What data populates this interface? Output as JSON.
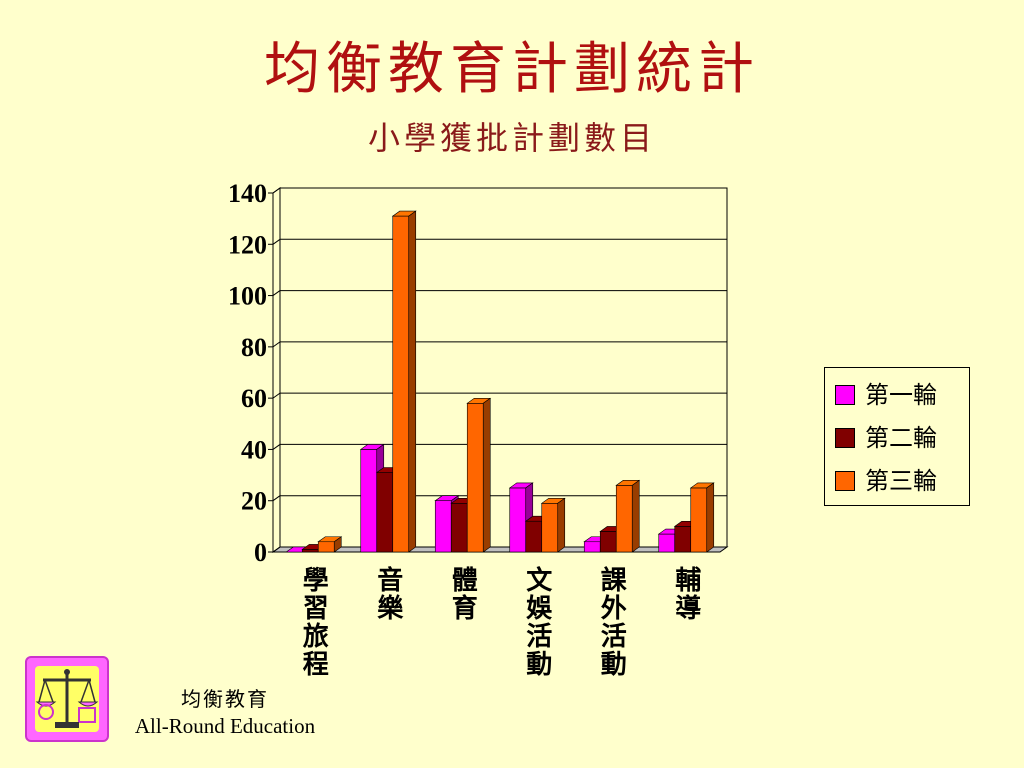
{
  "slide": {
    "title": "均衡教育計劃統計",
    "subtitle": "小學獲批計劃數目"
  },
  "footer": {
    "chinese": "均衡教育",
    "english": "All-Round Education"
  },
  "logo": {
    "icon": "balance-scale-icon",
    "colors": {
      "outer": "#ff66ff",
      "inner": "#ffff66"
    }
  },
  "chart_data": {
    "type": "bar",
    "title": "",
    "categories": [
      "學習旅程",
      "音樂",
      "體育",
      "文娛活動",
      "課外活動",
      "輔導"
    ],
    "series": [
      {
        "name": "第一輪",
        "color": "#ff00ff",
        "values": [
          0,
          40,
          20,
          25,
          4,
          7
        ]
      },
      {
        "name": "第二輪",
        "color": "#800000",
        "values": [
          1,
          31,
          19,
          12,
          8,
          10
        ]
      },
      {
        "name": "第三輪",
        "color": "#ff6600",
        "values": [
          4,
          131,
          58,
          19,
          26,
          25
        ]
      }
    ],
    "ylim": [
      0,
      140
    ],
    "yticks": [
      "0",
      "20",
      "40",
      "60",
      "80",
      "100",
      "120",
      "140"
    ],
    "grid": true,
    "legend_position": "right",
    "style": "3d-bar"
  }
}
